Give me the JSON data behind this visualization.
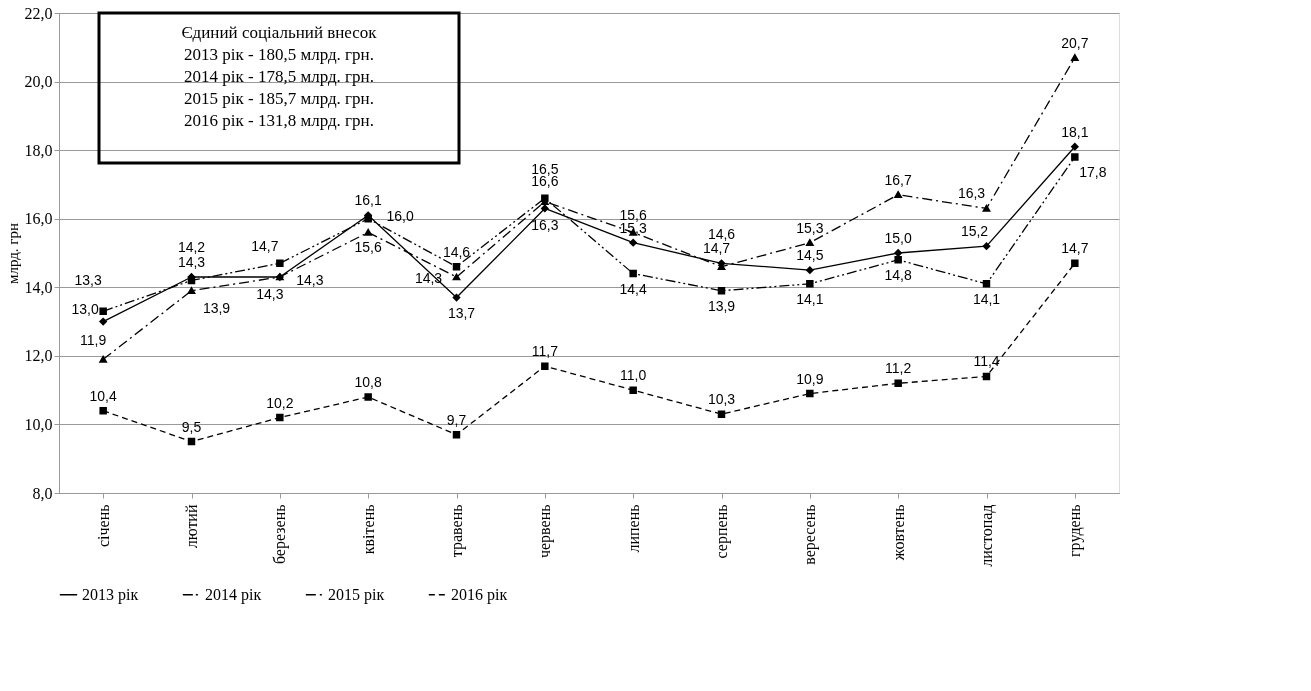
{
  "chart_data": {
    "type": "line",
    "ylabel": "млрд. грн",
    "categories": [
      "січень",
      "лютий",
      "березень",
      "квітень",
      "травень",
      "червень",
      "липень",
      "серпень",
      "вересень",
      "жовтень",
      "листопад",
      "грудень"
    ],
    "series": [
      {
        "name": "2013 рік",
        "color": "#000000",
        "marker": "diamond",
        "line_style": "solid",
        "values": [
          13.0,
          14.3,
          14.3,
          16.1,
          13.7,
          16.3,
          15.3,
          14.7,
          14.5,
          15.0,
          15.2,
          18.1
        ],
        "value_labels": [
          "13,0",
          "14,3",
          "14,3",
          "16,1",
          "13,7",
          "16,3",
          "15,3",
          "14,7",
          "14,5",
          "15,0",
          "15,2",
          "18,1"
        ]
      },
      {
        "name": "2014 рік",
        "color": "#000000",
        "marker": "square",
        "line_style": "dashdotdot",
        "values": [
          13.3,
          14.2,
          14.7,
          16.0,
          14.6,
          16.6,
          14.4,
          13.9,
          14.1,
          14.8,
          14.1,
          17.8
        ],
        "value_labels": [
          "13,3",
          "14,2",
          "14,7",
          "16,0",
          "14,6",
          "16,6",
          "14,4",
          "13,9",
          "14,1",
          "14,8",
          "14,1",
          "17,8"
        ]
      },
      {
        "name": "2015 рік",
        "color": "#000000",
        "marker": "triangle",
        "line_style": "dashdot",
        "values": [
          11.9,
          13.9,
          14.3,
          15.6,
          14.3,
          16.5,
          15.6,
          14.6,
          15.3,
          16.7,
          16.3,
          20.7
        ],
        "value_labels": [
          "11,9",
          "13,9",
          "14,3",
          "15,6",
          "14,3",
          "16,5",
          "15,6",
          "14,6",
          "15,3",
          "16,7",
          "16,3",
          "20,7"
        ]
      },
      {
        "name": "2016 рік",
        "color": "#000000",
        "marker": "square",
        "line_style": "dashed",
        "values": [
          10.4,
          9.5,
          10.2,
          10.8,
          9.7,
          11.7,
          11.0,
          10.3,
          10.9,
          11.2,
          11.4,
          14.7
        ],
        "value_labels": [
          "10,4",
          "9,5",
          "10,2",
          "10,8",
          "9,7",
          "11,7",
          "11,0",
          "10,3",
          "10,9",
          "11,2",
          "11,4",
          "14,7"
        ]
      }
    ],
    "ylim": [
      8,
      22
    ],
    "yticks": [
      {
        "value": 8,
        "label": "8,0"
      },
      {
        "value": 10,
        "label": "10,0"
      },
      {
        "value": 12,
        "label": "12,0"
      },
      {
        "value": 14,
        "label": "14,0"
      },
      {
        "value": 16,
        "label": "16,0"
      },
      {
        "value": 18,
        "label": "18,0"
      },
      {
        "value": 20,
        "label": "20,0"
      },
      {
        "value": 22,
        "label": "22,0"
      }
    ],
    "grid": "y",
    "legend": "bottom",
    "annotations": [
      "Єдиний соціальний внесок",
      "2013 рік - 180,5 млрд. грн.",
      "2014 рік - 178,5 млрд. грн.",
      "2015 рік - 185,7 млрд. грн.",
      "2016 рік - 131,8 млрд. грн."
    ]
  }
}
